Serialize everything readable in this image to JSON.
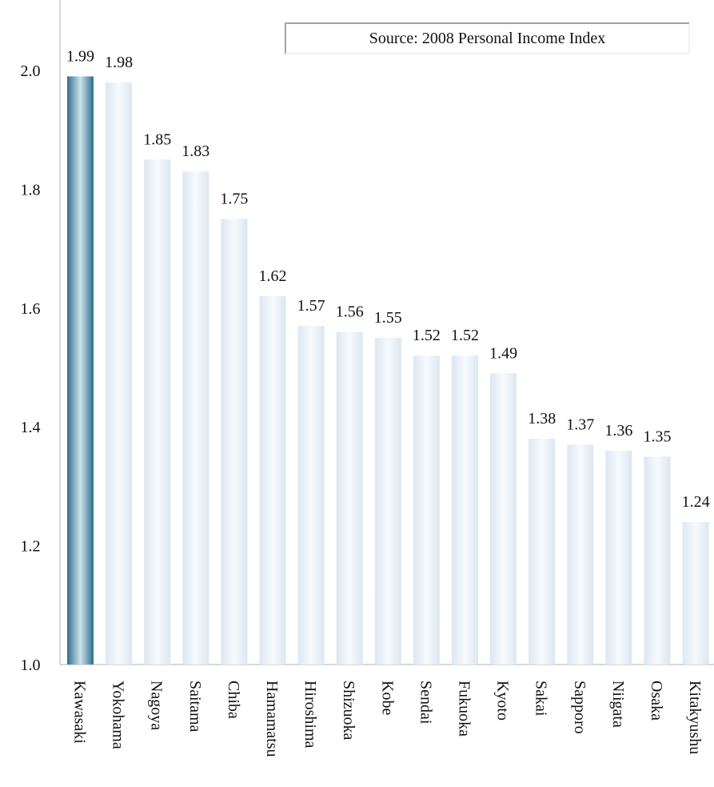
{
  "chart_data": {
    "type": "bar",
    "title": "",
    "xlabel": "",
    "ylabel": "",
    "ylim": [
      1.0,
      2.0
    ],
    "yticks": [
      "1.0",
      "1.2",
      "1.4",
      "1.6",
      "1.8",
      "2.0"
    ],
    "grid": false,
    "annotation": "Source: 2008 Personal Income Index",
    "categories": [
      "Kawasaki",
      "Yokohama",
      "Nagoya",
      "Saitama",
      "Chiba",
      "Hamamatsu",
      "Hiroshima",
      "Shizuoka",
      "Kobe",
      "Sendai",
      "Fukuoka",
      "Kyoto",
      "Sakai",
      "Sapporo",
      "Niigata",
      "Osaka",
      "Kitakyushu"
    ],
    "values": [
      1.99,
      1.98,
      1.85,
      1.83,
      1.75,
      1.62,
      1.57,
      1.56,
      1.55,
      1.52,
      1.52,
      1.49,
      1.38,
      1.37,
      1.36,
      1.35,
      1.24
    ],
    "value_labels": [
      "1.99",
      "1.98",
      "1.85",
      "1.83",
      "1.75",
      "1.62",
      "1.57",
      "1.56",
      "1.55",
      "1.52",
      "1.52",
      "1.49",
      "1.38",
      "1.37",
      "1.36",
      "1.35",
      "1.24"
    ],
    "highlight_index": 0,
    "colors": {
      "bar_edge": "#dce7f1",
      "bar_center": "#f7fafd",
      "highlight_edge": "#2f6e8e",
      "highlight_center": "#cde2ec",
      "axis": "#b0b0b0",
      "text": "#111111"
    }
  }
}
